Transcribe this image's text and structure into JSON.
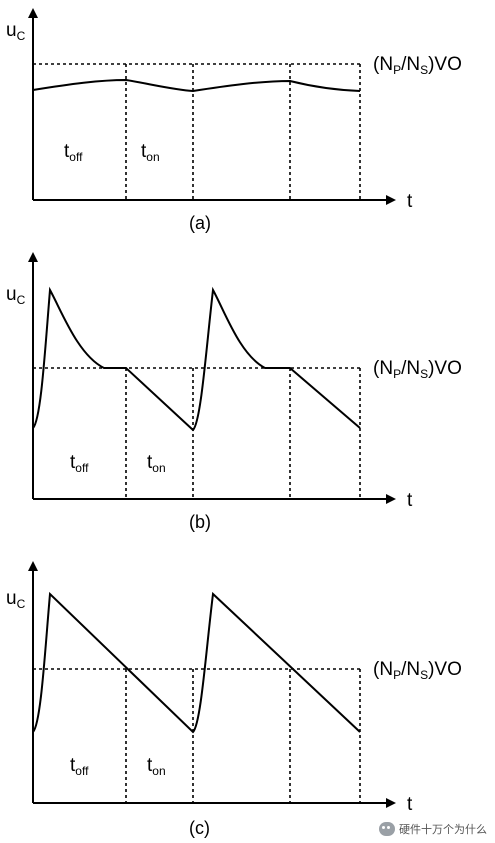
{
  "panels": [
    {
      "id": "a",
      "y_label": "u",
      "y_sub": "C",
      "x_label": "t",
      "caption": "(a)",
      "level_label": {
        "open": "(N",
        "p": "P",
        "mid": "/N",
        "s": "S",
        "close": ")VO"
      },
      "phase_labels": [
        {
          "base": "t",
          "sub": "off"
        },
        {
          "base": "t",
          "sub": "on"
        }
      ]
    },
    {
      "id": "b",
      "y_label": "u",
      "y_sub": "C",
      "x_label": "t",
      "caption": "(b)",
      "level_label": {
        "open": "(N",
        "p": "P",
        "mid": "/N",
        "s": "S",
        "close": ")VO"
      },
      "phase_labels": [
        {
          "base": "t",
          "sub": "off"
        },
        {
          "base": "t",
          "sub": "on"
        }
      ]
    },
    {
      "id": "c",
      "y_label": "u",
      "y_sub": "C",
      "x_label": "t",
      "caption": "(c)",
      "level_label": {
        "open": "(N",
        "p": "P",
        "mid": "/N",
        "s": "S",
        "close": ")VO"
      },
      "phase_labels": [
        {
          "base": "t",
          "sub": "off"
        },
        {
          "base": "t",
          "sub": "on"
        }
      ]
    }
  ],
  "watermark": "硬件十万个为什么",
  "watermark_icon": "wechat-bubble-icon"
}
